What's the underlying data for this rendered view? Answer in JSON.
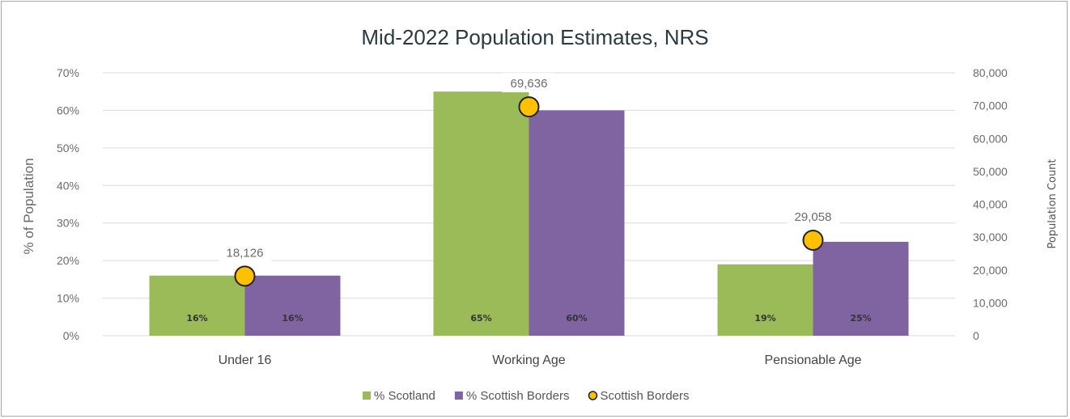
{
  "chart_data": {
    "type": "bar",
    "title": "Mid-2022 Population Estimates, NRS",
    "categories": [
      "Under 16",
      "Working Age",
      "Pensionable Age"
    ],
    "series": [
      {
        "name": "% Scotland",
        "axis": "left",
        "values": [
          16,
          65,
          19
        ],
        "labels": [
          "16%",
          "65%",
          "19%"
        ],
        "color": "#9bbb59"
      },
      {
        "name": "% Scottish Borders",
        "axis": "left",
        "values": [
          16,
          60,
          25
        ],
        "labels": [
          "16%",
          "60%",
          "25%"
        ],
        "color": "#8064a2"
      },
      {
        "name": "Scottish Borders",
        "axis": "right",
        "kind": "marker",
        "values": [
          18126,
          69636,
          29058
        ],
        "labels": [
          "18,126",
          "69,636",
          "29,058"
        ],
        "color": "#ffc000"
      }
    ],
    "ylabel": "% of Population",
    "ylim": [
      0,
      70
    ],
    "yticks": [
      "0%",
      "10%",
      "20%",
      "30%",
      "40%",
      "50%",
      "60%",
      "70%"
    ],
    "y2label": "Population Count",
    "y2lim": [
      0,
      80000
    ],
    "y2ticks": [
      "0",
      "10,000",
      "20,000",
      "30,000",
      "40,000",
      "50,000",
      "60,000",
      "70,000",
      "80,000"
    ],
    "grid": true,
    "legend_position": "bottom"
  }
}
